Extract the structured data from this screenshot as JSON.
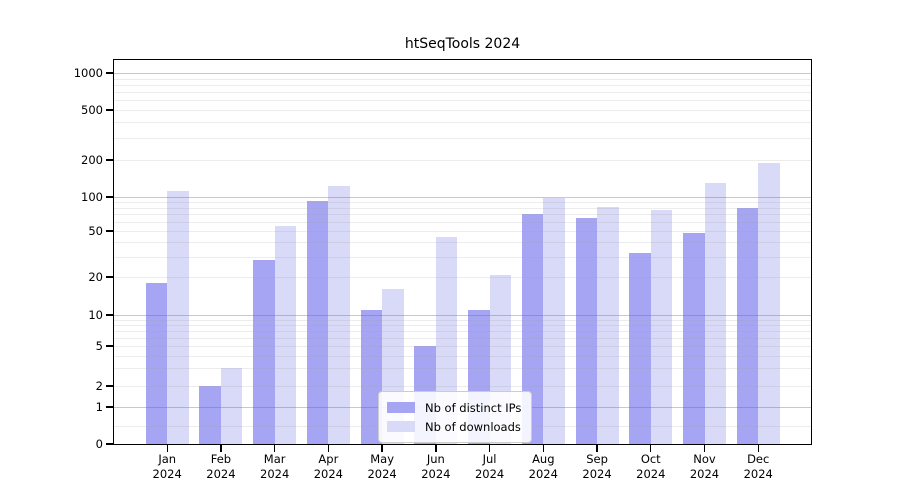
{
  "chart_data": {
    "type": "bar",
    "title": "htSeqTools 2024",
    "categories": [
      "Jan",
      "Feb",
      "Mar",
      "Apr",
      "May",
      "Jun",
      "Jul",
      "Aug",
      "Sep",
      "Oct",
      "Nov",
      "Dec"
    ],
    "x_year_label": "2024",
    "series": [
      {
        "name": "Nb of distinct IPs",
        "color": "#a5a5f3",
        "values": [
          18,
          2,
          28,
          93,
          11,
          5,
          11,
          71,
          65,
          32,
          48,
          80
        ]
      },
      {
        "name": "Nb of downloads",
        "color": "#d9d9f8",
        "values": [
          112,
          3,
          55,
          123,
          16,
          44,
          21,
          98,
          82,
          77,
          130,
          190
        ]
      }
    ],
    "yscale": "symlog",
    "y_ticks": [
      0,
      1,
      2,
      5,
      10,
      20,
      50,
      100,
      200,
      500,
      1000
    ],
    "ylim": [
      0,
      1500
    ],
    "grid": true,
    "legend_position": "lower center"
  },
  "colors": {
    "ips_bar": "#a5a5f3",
    "downloads_bar": "#d9d9f8",
    "major_grid": "#b5b5b5",
    "minor_grid": "#e7e7e7",
    "axis": "#000000",
    "legend_border": "#cccccc"
  }
}
